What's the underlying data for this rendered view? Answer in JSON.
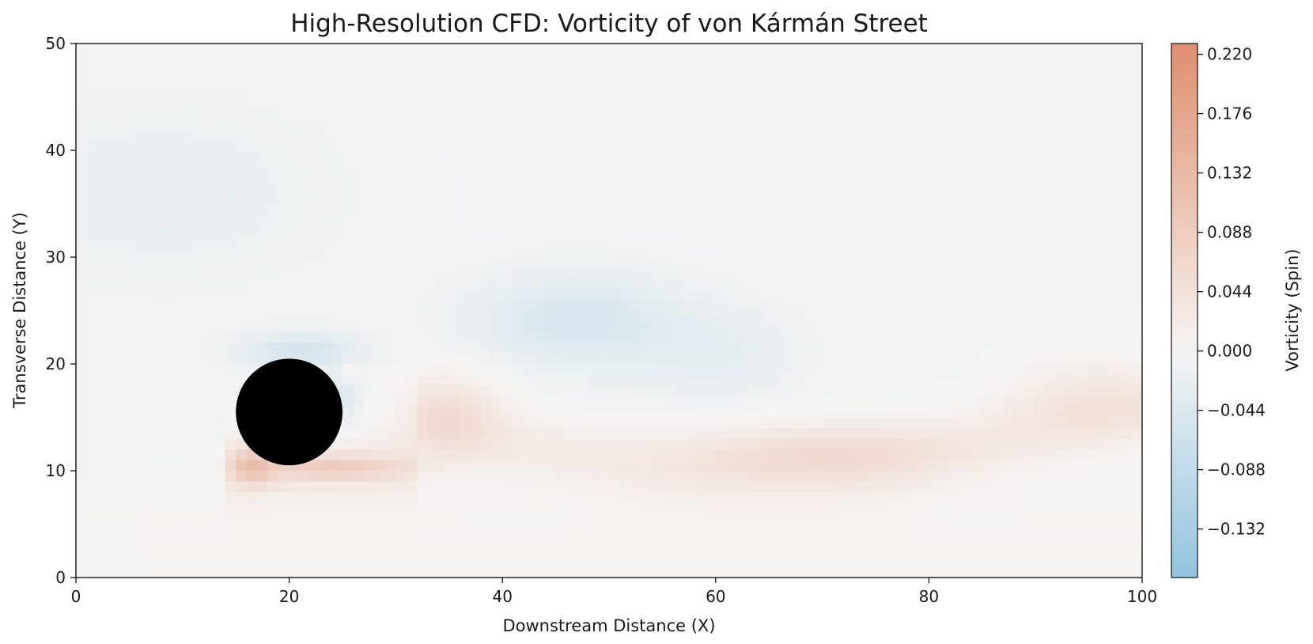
{
  "chart_data": {
    "type": "heatmap",
    "title": "High-Resolution CFD: Vorticity of von Kármán Street",
    "xlabel": "Downstream Distance (X)",
    "ylabel": "Transverse Distance (Y)",
    "xlim": [
      0,
      100
    ],
    "ylim": [
      0,
      50
    ],
    "x_ticks": [
      0,
      20,
      40,
      60,
      80,
      100
    ],
    "y_ticks": [
      0,
      10,
      20,
      30,
      40,
      50
    ],
    "x_tick_labels": [
      "0",
      "20",
      "40",
      "60",
      "80",
      "100"
    ],
    "y_tick_labels": [
      "0",
      "10",
      "20",
      "30",
      "40",
      "50"
    ],
    "grid": false,
    "obstacle": {
      "shape": "circle",
      "center": [
        20,
        15.5
      ],
      "radius": 5,
      "color": "#000000"
    },
    "colorbar": {
      "label": "Vorticity (Spin)",
      "range": [
        -0.168,
        0.228
      ],
      "ticks": [
        0.22,
        0.176,
        0.132,
        0.088,
        0.044,
        0.0,
        -0.044,
        -0.088,
        -0.132
      ],
      "tick_labels": [
        "0.220",
        "0.176",
        "0.132",
        "0.088",
        "0.044",
        "0.000",
        "−0.044",
        "−0.088",
        "−0.132"
      ],
      "colormap": "RdBu_r (alpha 0.6)",
      "color_low": "#92c3de",
      "color_mid": "#f6f5f4",
      "color_high": "#df8e6d"
    },
    "features": [
      {
        "kind": "shear-layer",
        "sign": "positive",
        "peak": 0.09,
        "x": [
          14,
          32
        ],
        "y": [
          9.5,
          11.5
        ]
      },
      {
        "kind": "shear-layer",
        "sign": "negative",
        "peak": -0.06,
        "x": [
          15,
          28
        ],
        "y": [
          18.5,
          22.5
        ]
      },
      {
        "kind": "vortex",
        "sign": "negative",
        "peak": -0.045,
        "center": [
          47,
          24
        ]
      },
      {
        "kind": "vortex",
        "sign": "positive",
        "peak": 0.045,
        "center": [
          35,
          15
        ]
      },
      {
        "kind": "vortex",
        "sign": "positive",
        "peak": 0.04,
        "center": [
          70,
          11
        ]
      }
    ]
  }
}
